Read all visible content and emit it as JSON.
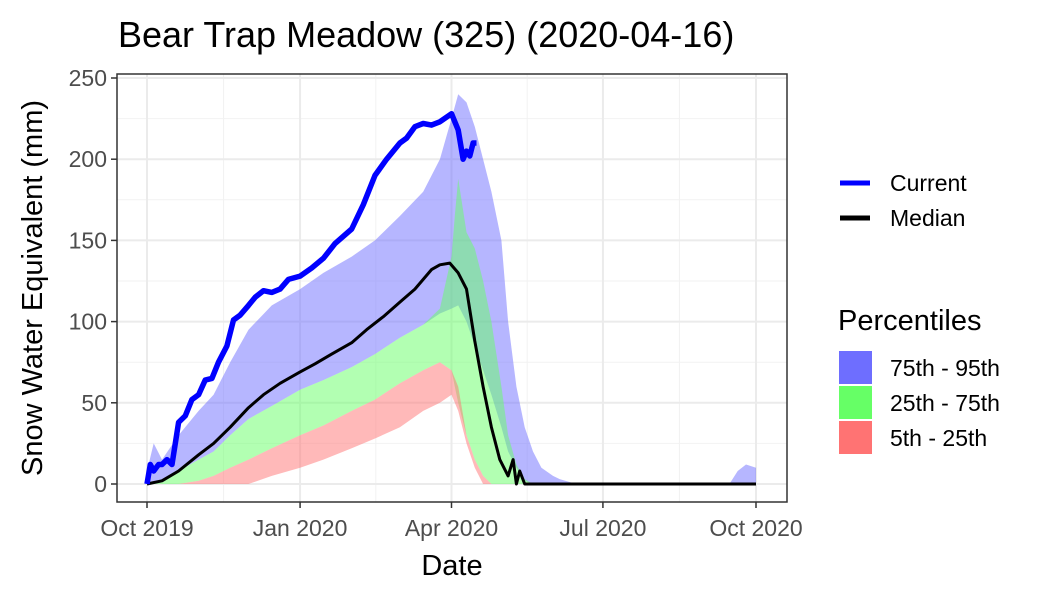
{
  "chart_data": {
    "type": "area",
    "title": "Bear Trap Meadow (325) (2020-04-16)",
    "xlabel": "Date",
    "ylabel": "Snow Water Equivalent (mm)",
    "xlim": [
      "2019-10-01",
      "2020-10-01"
    ],
    "ylim": [
      0,
      250
    ],
    "x_ticks": [
      "2019-10-01",
      "2020-01-01",
      "2020-04-01",
      "2020-07-01",
      "2020-10-01"
    ],
    "x_tick_labels": [
      "Oct 2019",
      "Jan 2020",
      "Apr 2020",
      "Jul 2020",
      "Oct 2020"
    ],
    "y_ticks": [
      0,
      50,
      100,
      150,
      200,
      250
    ],
    "y_tick_labels": [
      "0",
      "50",
      "100",
      "150",
      "200",
      "250"
    ],
    "grid": true,
    "legend_lines_title": "",
    "legend_lines": [
      {
        "name": "Current",
        "color": "#0000ff"
      },
      {
        "name": "Median",
        "color": "#000000"
      }
    ],
    "legend_fill_title": "Percentiles",
    "legend_fill": [
      {
        "name": "75th - 95th",
        "color": "#6e6eff"
      },
      {
        "name": "25th - 75th",
        "color": "#66ff66"
      },
      {
        "name": "5th - 25th",
        "color": "#ff7373"
      }
    ],
    "legend_position": "right",
    "bands": [
      {
        "name": "75th - 95th",
        "color": "#6e6eff",
        "x": [
          "2019-10-01",
          "2019-10-05",
          "2019-10-10",
          "2019-10-20",
          "2019-11-01",
          "2019-11-10",
          "2019-11-20",
          "2019-12-01",
          "2019-12-15",
          "2020-01-01",
          "2020-01-15",
          "2020-02-01",
          "2020-02-15",
          "2020-03-01",
          "2020-03-15",
          "2020-03-25",
          "2020-04-01",
          "2020-04-05",
          "2020-04-10",
          "2020-04-15",
          "2020-04-20",
          "2020-04-25",
          "2020-05-01",
          "2020-05-05",
          "2020-05-10",
          "2020-05-15",
          "2020-05-20",
          "2020-05-25",
          "2020-06-01",
          "2020-06-05",
          "2020-06-15",
          "2020-09-15",
          "2020-09-20",
          "2020-09-25",
          "2020-10-01"
        ],
        "upper": [
          8,
          25,
          15,
          30,
          45,
          55,
          75,
          95,
          110,
          120,
          130,
          140,
          150,
          165,
          180,
          200,
          225,
          240,
          235,
          220,
          200,
          180,
          150,
          100,
          60,
          35,
          20,
          10,
          5,
          3,
          0,
          0,
          8,
          12,
          10
        ],
        "lower": [
          0,
          0,
          2,
          8,
          15,
          20,
          30,
          40,
          48,
          58,
          64,
          72,
          80,
          90,
          98,
          105,
          108,
          110,
          100,
          85,
          70,
          55,
          35,
          20,
          10,
          2,
          0,
          0,
          0,
          0,
          0,
          0,
          0,
          0,
          0
        ]
      },
      {
        "name": "25th - 75th",
        "color": "#66ff66",
        "x": [
          "2019-10-01",
          "2019-10-10",
          "2019-10-20",
          "2019-11-01",
          "2019-11-10",
          "2019-11-20",
          "2019-12-01",
          "2019-12-15",
          "2020-01-01",
          "2020-01-15",
          "2020-02-01",
          "2020-02-15",
          "2020-03-01",
          "2020-03-15",
          "2020-03-25",
          "2020-04-01",
          "2020-04-03",
          "2020-04-05",
          "2020-04-10",
          "2020-04-15",
          "2020-04-20",
          "2020-04-25",
          "2020-05-01",
          "2020-05-05",
          "2020-05-10",
          "2020-05-15",
          "2020-05-20",
          "2020-05-25"
        ],
        "upper": [
          0,
          2,
          8,
          15,
          20,
          30,
          40,
          48,
          58,
          64,
          72,
          80,
          90,
          98,
          108,
          140,
          165,
          188,
          155,
          145,
          125,
          100,
          60,
          30,
          12,
          3,
          0,
          0
        ],
        "lower": [
          0,
          0,
          0,
          2,
          5,
          10,
          15,
          22,
          30,
          36,
          45,
          52,
          62,
          70,
          75,
          70,
          60,
          50,
          30,
          15,
          5,
          0,
          0,
          0,
          0,
          0,
          0,
          0
        ]
      },
      {
        "name": "5th - 25th",
        "color": "#ff7373",
        "x": [
          "2019-10-01",
          "2019-10-20",
          "2019-11-01",
          "2019-11-10",
          "2019-11-20",
          "2019-12-01",
          "2019-12-15",
          "2020-01-01",
          "2020-01-15",
          "2020-02-01",
          "2020-02-15",
          "2020-03-01",
          "2020-03-15",
          "2020-03-25",
          "2020-04-01",
          "2020-04-05",
          "2020-04-10",
          "2020-04-15",
          "2020-04-20",
          "2020-04-25"
        ],
        "upper": [
          0,
          0,
          2,
          5,
          10,
          15,
          22,
          30,
          36,
          45,
          52,
          62,
          70,
          75,
          70,
          60,
          30,
          15,
          5,
          0
        ],
        "lower": [
          0,
          0,
          0,
          0,
          0,
          0,
          5,
          10,
          15,
          22,
          28,
          35,
          45,
          50,
          55,
          45,
          25,
          10,
          0,
          0
        ]
      }
    ],
    "series": [
      {
        "name": "Current",
        "color": "#0000ff",
        "x": [
          "2019-10-01",
          "2019-10-03",
          "2019-10-05",
          "2019-10-08",
          "2019-10-10",
          "2019-10-13",
          "2019-10-16",
          "2019-10-20",
          "2019-10-24",
          "2019-10-28",
          "2019-11-01",
          "2019-11-05",
          "2019-11-09",
          "2019-11-13",
          "2019-11-18",
          "2019-11-22",
          "2019-11-26",
          "2019-12-01",
          "2019-12-05",
          "2019-12-10",
          "2019-12-15",
          "2019-12-20",
          "2019-12-25",
          "2020-01-01",
          "2020-01-08",
          "2020-01-15",
          "2020-01-22",
          "2020-02-01",
          "2020-02-08",
          "2020-02-15",
          "2020-02-22",
          "2020-03-01",
          "2020-03-05",
          "2020-03-10",
          "2020-03-15",
          "2020-03-20",
          "2020-03-25",
          "2020-04-01",
          "2020-04-05",
          "2020-04-08",
          "2020-04-10",
          "2020-04-12",
          "2020-04-14",
          "2020-04-16"
        ],
        "values": [
          0,
          12,
          8,
          12,
          12,
          15,
          12,
          38,
          42,
          52,
          55,
          64,
          65,
          75,
          85,
          101,
          104,
          110,
          115,
          119,
          118,
          120,
          126,
          128,
          133,
          139,
          148,
          157,
          172,
          190,
          200,
          210,
          213,
          220,
          222,
          221,
          223,
          228,
          218,
          200,
          205,
          202,
          210,
          210
        ]
      },
      {
        "name": "Median",
        "color": "#000000",
        "x": [
          "2019-10-01",
          "2019-10-10",
          "2019-10-20",
          "2019-11-01",
          "2019-11-10",
          "2019-11-20",
          "2019-12-01",
          "2019-12-10",
          "2019-12-20",
          "2020-01-01",
          "2020-01-10",
          "2020-01-20",
          "2020-02-01",
          "2020-02-10",
          "2020-02-20",
          "2020-03-01",
          "2020-03-10",
          "2020-03-20",
          "2020-03-25",
          "2020-03-31",
          "2020-04-05",
          "2020-04-10",
          "2020-04-15",
          "2020-04-20",
          "2020-04-25",
          "2020-04-30",
          "2020-05-05",
          "2020-05-08",
          "2020-05-10",
          "2020-05-12",
          "2020-05-15",
          "2020-05-20",
          "2020-10-01"
        ],
        "values": [
          0,
          2,
          8,
          18,
          25,
          35,
          47,
          55,
          62,
          69,
          74,
          80,
          87,
          95,
          103,
          112,
          120,
          132,
          135,
          136,
          130,
          120,
          88,
          60,
          35,
          15,
          5,
          15,
          0,
          8,
          0,
          0,
          0
        ]
      }
    ]
  }
}
